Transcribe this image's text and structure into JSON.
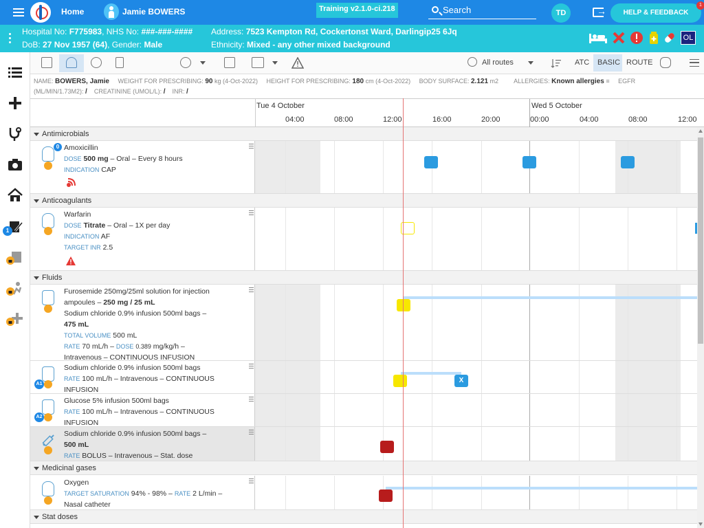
{
  "topbar": {
    "home": "Home",
    "patient_name": "Jamie BOWERS",
    "training": "Training v2.1.0-ci.218",
    "search": "Search",
    "avatar": "TD",
    "help": "HELP & FEEDBACK",
    "help_badge": "1"
  },
  "banner": {
    "hospital_label": "Hospital No:",
    "hospital_no": "F775983",
    "nhs_label": "NHS No:",
    "nhs_no": "###-###-####",
    "address_label": "Address:",
    "address": "7523 Kempton Rd, Cockertonst Ward, Darlingip25 6Jq",
    "dob_label": "DoB:",
    "dob": "27 Nov 1957 (64)",
    "gender_label": "Gender:",
    "gender": "Male",
    "ethnicity_label": "Ethnicity:",
    "ethnicity": "Mixed - any other mixed background",
    "ol_badge": "OL"
  },
  "sidebar": {
    "badge_prescribe": "1"
  },
  "toolbar": {
    "routes": "All routes",
    "atc": "ATC",
    "basic": "BASIC",
    "route": "ROUTE"
  },
  "info": {
    "name_label": "NAME:",
    "name": "BOWERS, Jamie",
    "weight_label": "WEIGHT FOR PRESCRIBING:",
    "weight": "90",
    "weight_unit": "kg (4-Oct-2022)",
    "height_label": "HEIGHT FOR PRESCRIBING:",
    "height": "180",
    "height_unit": "cm (4-Oct-2022)",
    "bsa_label": "BODY SURFACE:",
    "bsa": "2.121",
    "bsa_unit": "m2",
    "allergies_label": "ALLERGIES:",
    "allergies": "Known allergies",
    "egfr_label": "EGFR",
    "egfr_unit": "(ML/MIN/1.73M2):",
    "egfr_val": "/",
    "creat_label": "CREATININE (UMOL/L):",
    "creat_val": "/",
    "inr_label": "INR:",
    "inr_val": "/"
  },
  "timeline": {
    "days": [
      "Tue 4 October",
      "Wed 5 October"
    ],
    "hours": [
      "04:00",
      "08:00",
      "12:00",
      "16:00",
      "20:00",
      "00:00",
      "04:00",
      "08:00",
      "12:00"
    ]
  },
  "sections": {
    "antimicrobials": "Antimicrobials",
    "anticoagulants": "Anticoagulants",
    "fluids": "Fluids",
    "gases": "Medicinal gases",
    "stat": "Stat doses"
  },
  "rows": {
    "amox": {
      "badge": "0",
      "name": "Amoxicillin",
      "dose_label": "DOSE",
      "dose": "500 mg",
      "dose_rest": "– Oral – Every 8 hours",
      "ind_label": "INDICATION",
      "ind": "CAP"
    },
    "warfarin": {
      "name": "Warfarin",
      "dose_label": "DOSE",
      "dose": "Titrate",
      "dose_rest": "– Oral – 1X per day",
      "ind_label": "INDICATION",
      "ind": "AF",
      "inr_label": "TARGET INR",
      "inr": "2.5"
    },
    "furo": {
      "l1": "Furosemide 250mg/25ml solution for injection",
      "l2a": "ampoules –",
      "l2b": "250 mg / 25 mL",
      "l3": "Sodium chloride 0.9% infusion 500ml bags –",
      "l4": "475 mL",
      "vol_label": "TOTAL VOLUME",
      "vol": "500 mL",
      "rate_label": "RATE",
      "rate": "70 mL/h –",
      "dose_label": "DOSE",
      "dose": "0.389",
      "dose_rest": "mg/kg/h –",
      "l7": "Intravenous – CONTINUOUS INFUSION"
    },
    "nacl1": {
      "badge": "A1",
      "l1": "Sodium chloride 0.9% infusion 500ml bags",
      "rate_label": "RATE",
      "rate": "100 mL/h – Intravenous – CONTINUOUS",
      "l3": "INFUSION",
      "stop_mark": "X"
    },
    "gluc": {
      "badge": "A2",
      "l1": "Glucose 5% infusion 500ml bags",
      "rate_label": "RATE",
      "rate": "100 mL/h – Intravenous – CONTINUOUS",
      "l3": "INFUSION"
    },
    "bolus": {
      "l1": "Sodium chloride 0.9% infusion 500ml bags –",
      "l2": "500 mL",
      "rate_label": "RATE",
      "rate": "BOLUS – Intravenous – Stat. dose"
    },
    "oxygen": {
      "name": "Oxygen",
      "sat_label": "TARGET SATURATION",
      "sat": "94% - 98% –",
      "rate_label": "RATE",
      "rate": "2 L/min –",
      "l3": "Nasal catheter"
    }
  },
  "colors": {
    "topbar": "#1e88e5",
    "banner": "#26c6da",
    "given": "#2b9be0",
    "due": "#f7e700",
    "missed": "#b71c1c",
    "now_line": "#e57373"
  }
}
